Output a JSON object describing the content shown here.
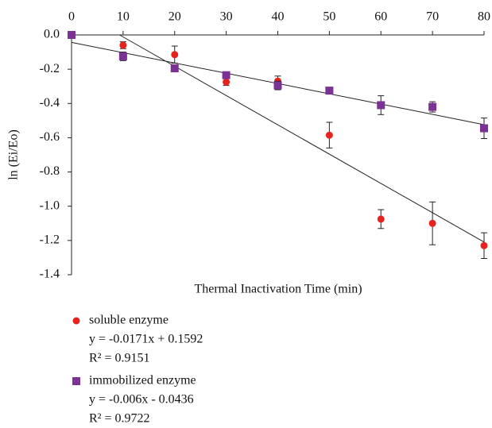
{
  "chart_data": {
    "type": "scatter",
    "x_label": "Thermal Inactivation Time (min)",
    "y_label": "ln (Ei/Eo)",
    "x": [
      0,
      10,
      20,
      30,
      40,
      50,
      60,
      70,
      80
    ],
    "xlim": [
      0,
      80
    ],
    "xticks": [
      0,
      10,
      20,
      30,
      40,
      50,
      60,
      70,
      80
    ],
    "ylim": [
      -1.4,
      0
    ],
    "yticks": [
      {
        "value": 0,
        "label": "0.0"
      },
      -0.2,
      -0.4,
      -0.6,
      -0.8,
      {
        "value": -1,
        "label": "-1.0"
      },
      -1.2,
      -1.4
    ],
    "series": [
      {
        "name": "soluble enzyme",
        "color": "#e8221c",
        "marker": "circle",
        "values": [
          0,
          -0.06,
          -0.115,
          -0.275,
          -0.27,
          -0.585,
          -1.075,
          -1.1,
          -1.23
        ],
        "errors": [
          0,
          0.02,
          0.05,
          0.02,
          0.03,
          0.075,
          0.055,
          0.125,
          0.075
        ],
        "trendline": {
          "slope": -0.0171,
          "intercept": 0.1592,
          "equation": "y = -0.0171x + 0.1592",
          "r2": "R² = 0.9151"
        }
      },
      {
        "name": "immobilized enzyme",
        "color": "#7b3294",
        "marker": "square",
        "values": [
          0,
          -0.125,
          -0.195,
          -0.235,
          -0.295,
          -0.325,
          -0.41,
          -0.42,
          -0.545
        ],
        "errors": [
          0,
          0.025,
          0.01,
          0.01,
          0.025,
          0.005,
          0.055,
          0.03,
          0.06
        ],
        "trendline": {
          "slope": -0.006,
          "intercept": -0.0436,
          "equation": "y = -0.006x - 0.0436",
          "r2": "R² = 0.9722"
        }
      }
    ]
  }
}
